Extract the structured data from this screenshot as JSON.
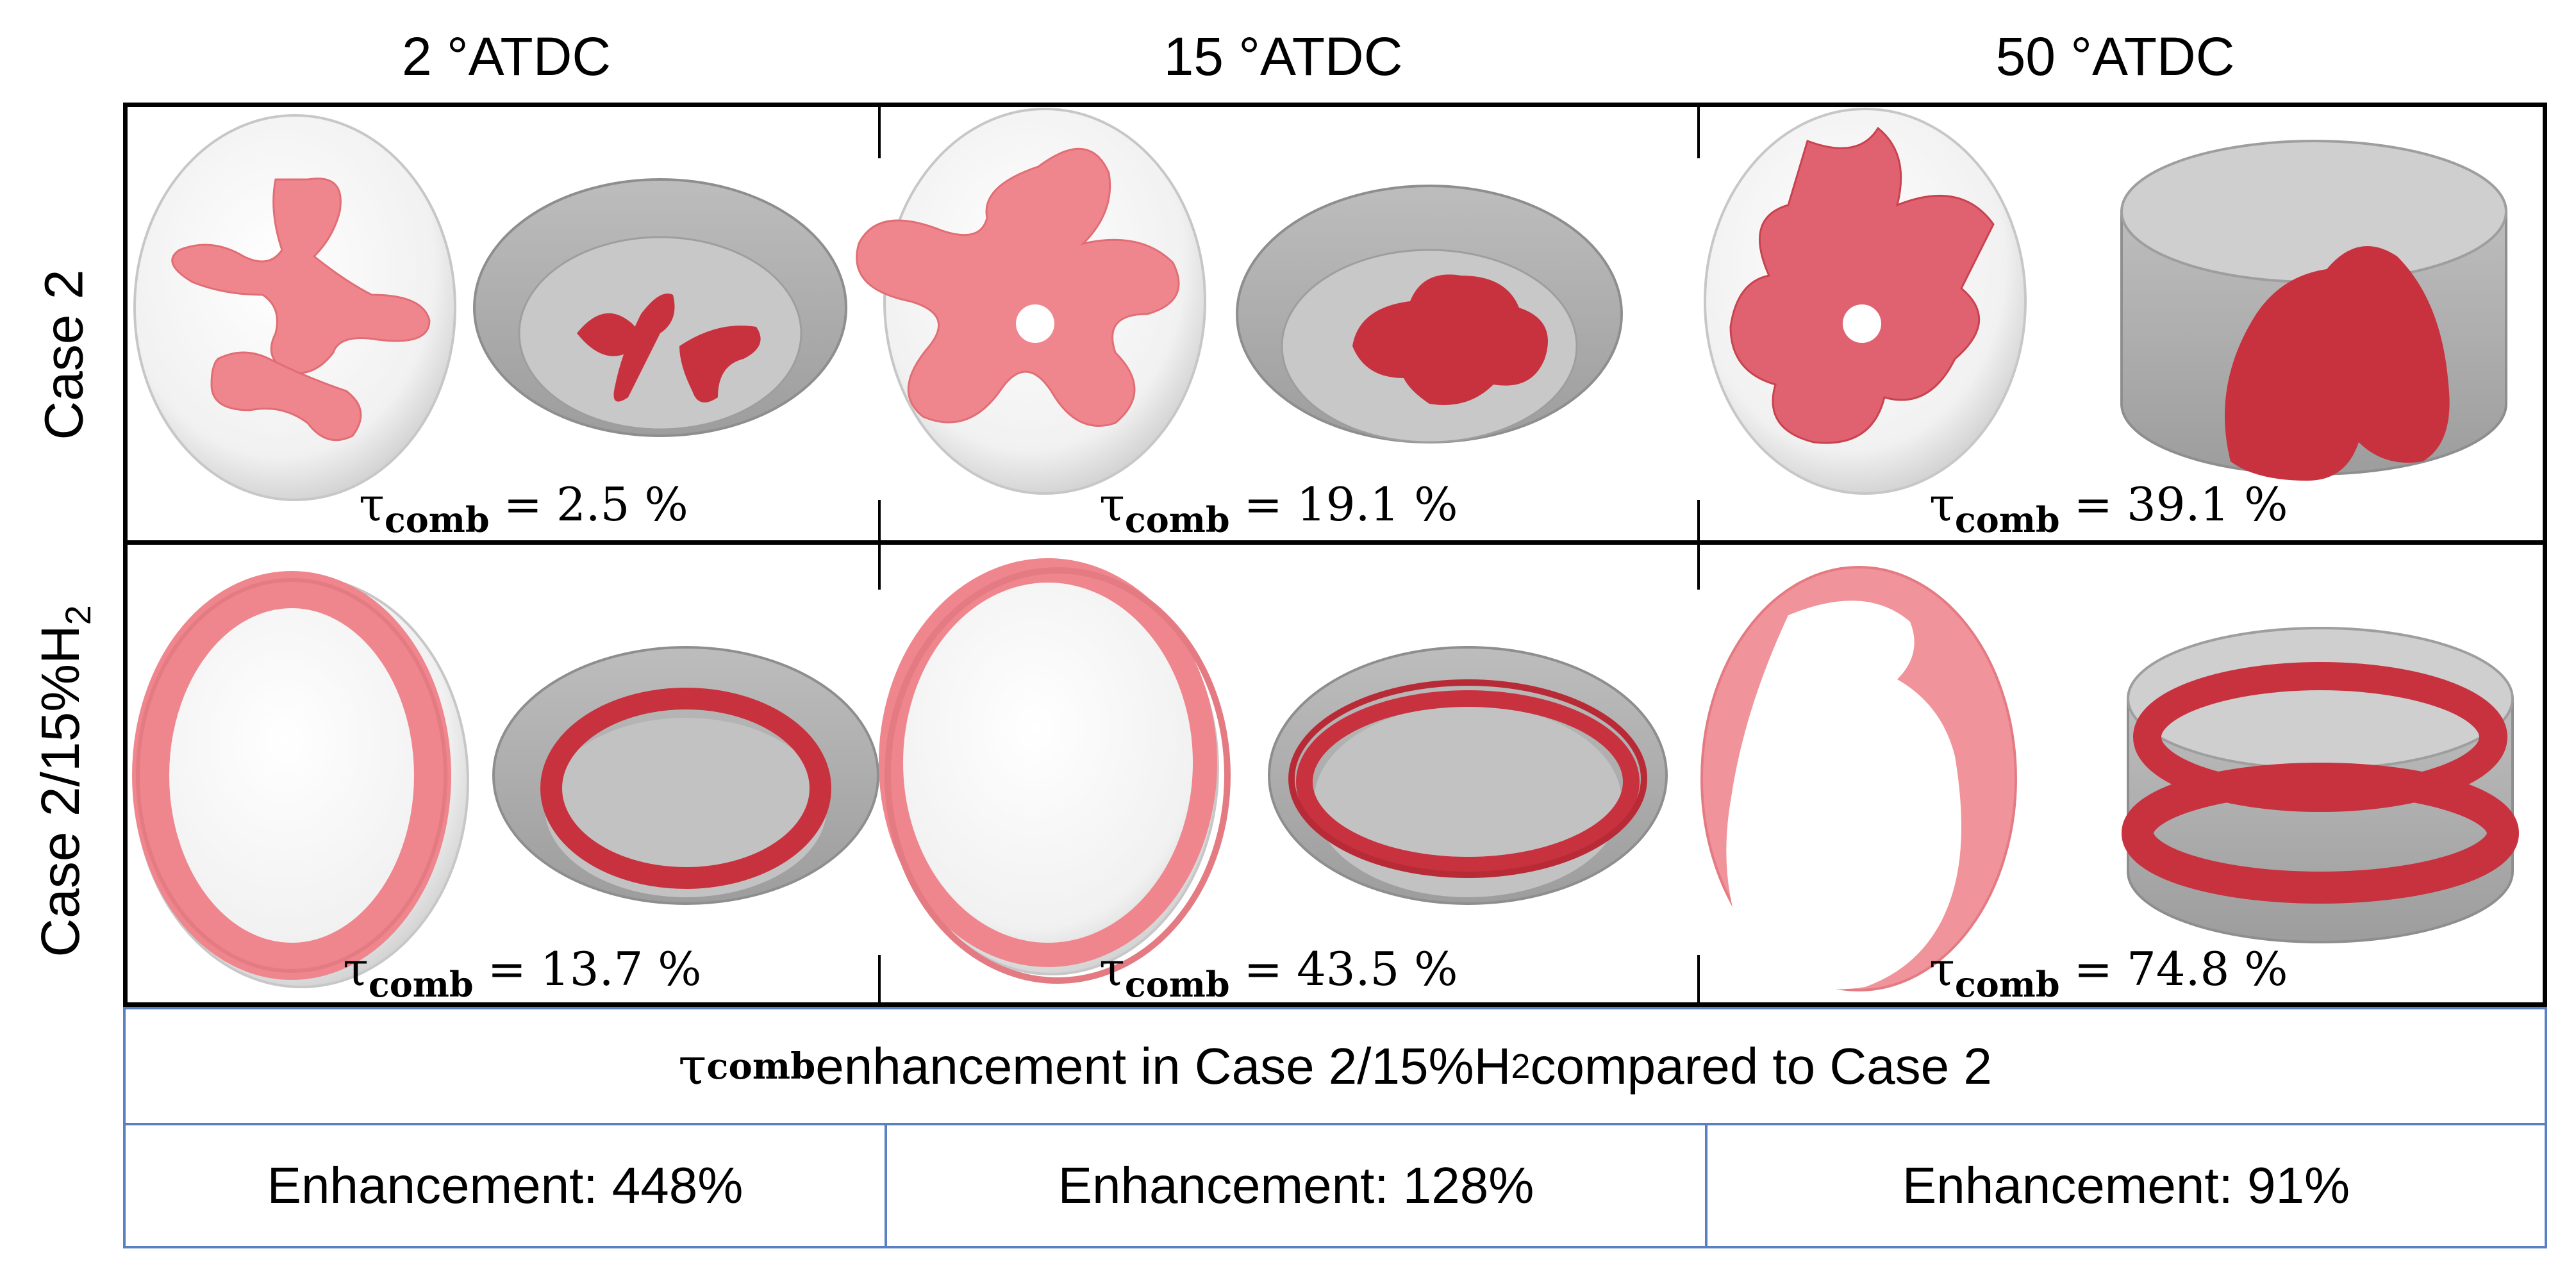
{
  "columns": [
    {
      "label": "2 °ATDC"
    },
    {
      "label": "15 °ATDC"
    },
    {
      "label": "50 °ATDC"
    }
  ],
  "rows": [
    {
      "label": "Case 2",
      "label_sub": ""
    },
    {
      "label": "Case 2/15%H",
      "label_sub": "2"
    }
  ],
  "tau_symbol": "τ",
  "tau_subscript": "comb",
  "tau_values": [
    [
      "2.5 %",
      "19.1 %",
      "39.1 %"
    ],
    [
      "13.7 %",
      "43.5 %",
      "74.8 %"
    ]
  ],
  "enhancement_title": {
    "prefix": "τ",
    "prefix_sub": "comb",
    "text_before_sub": " enhancement in Case 2/15%H",
    "h2_sub": "2",
    "text_after_sub": " compared to Case 2"
  },
  "enhancements": [
    "Enhancement: 448%",
    "Enhancement: 128%",
    "Enhancement: 91%"
  ],
  "colors": {
    "flame": "#c8323f",
    "flame_light": "#f0868d",
    "chamber": "#d9d9d9",
    "chamber_dark": "#9a9a9a",
    "table_border": "#5b7fc4"
  }
}
